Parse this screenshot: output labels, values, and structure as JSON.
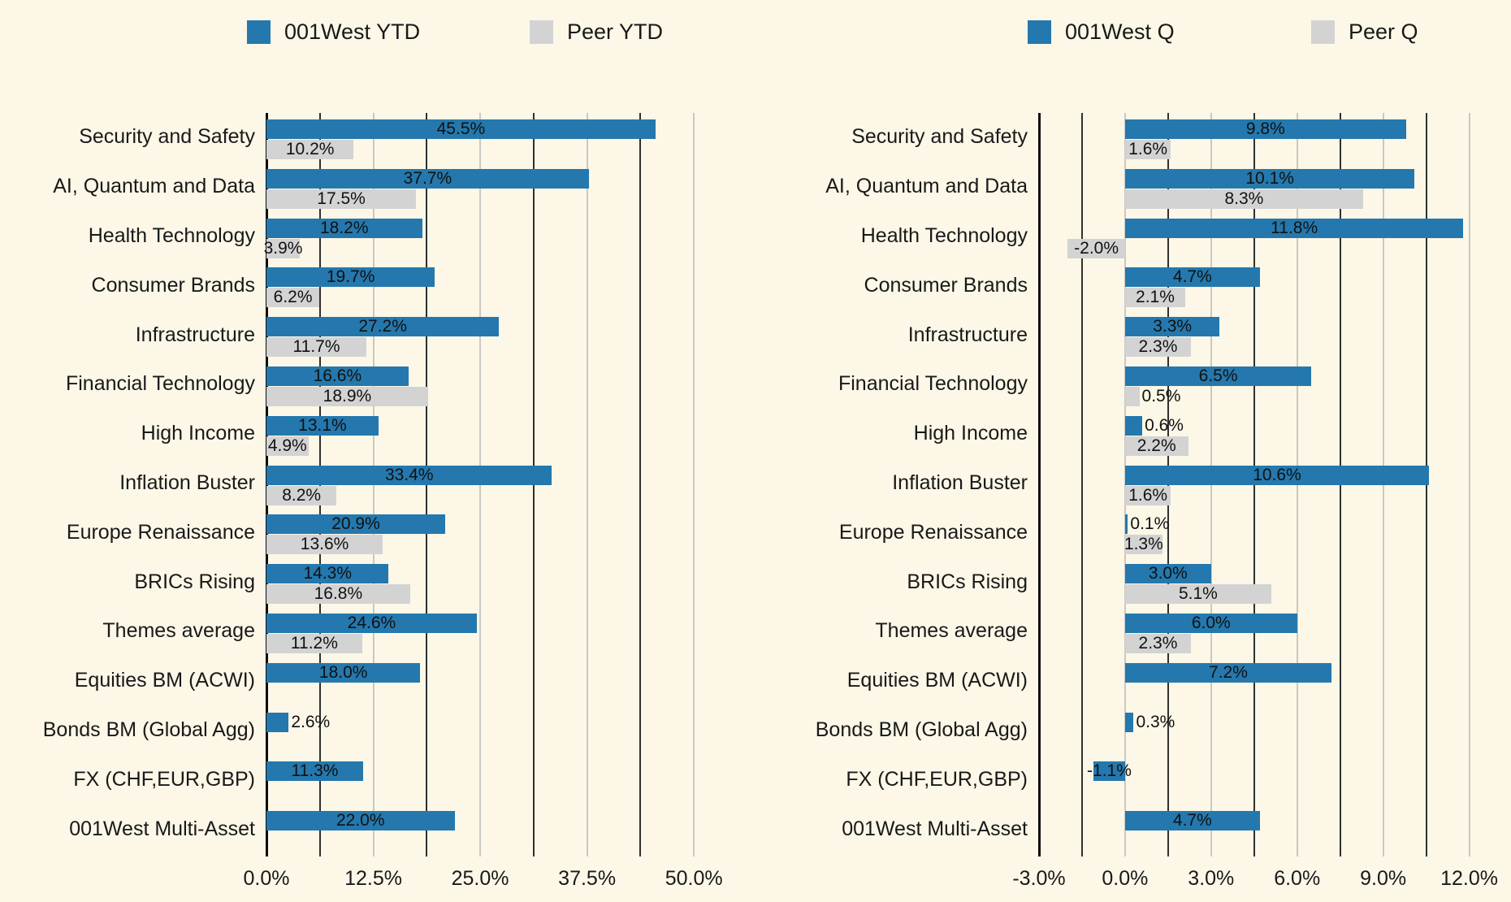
{
  "page": {
    "background_color": "#fcf7e7",
    "text_color": "#191919"
  },
  "colors": {
    "blue": "#2478ad",
    "gray": "#d3d3d3",
    "grid_dark": "#303030",
    "grid_light": "#c9c9c3",
    "spine": "#0d0d0d"
  },
  "legends": [
    {
      "label": "001West YTD",
      "color_key": "blue"
    },
    {
      "label": "Peer YTD",
      "color_key": "gray"
    },
    {
      "label": "001West Q",
      "color_key": "blue"
    },
    {
      "label": "Peer Q",
      "color_key": "gray"
    }
  ],
  "chart_data": [
    {
      "type": "bar",
      "orientation": "horizontal",
      "title": "",
      "categories": [
        "Security and Safety",
        "AI, Quantum and Data",
        "Health Technology",
        "Consumer Brands",
        "Infrastructure",
        "Financial Technology",
        "High Income",
        "Inflation Buster",
        "Europe Renaissance",
        "BRICs Rising",
        "Themes average",
        "Equities BM (ACWI)",
        "Bonds BM (Global Agg)",
        "FX (CHF,EUR,GBP)",
        "001West Multi-Asset"
      ],
      "series": [
        {
          "name": "001West YTD",
          "color_key": "blue",
          "values": [
            45.5,
            37.7,
            18.2,
            19.7,
            27.2,
            16.6,
            13.1,
            33.4,
            20.9,
            14.3,
            24.6,
            18.0,
            2.6,
            11.3,
            22.0
          ]
        },
        {
          "name": "Peer YTD",
          "color_key": "gray",
          "values": [
            10.2,
            17.5,
            3.9,
            6.2,
            11.7,
            18.9,
            4.9,
            8.2,
            13.6,
            16.8,
            11.2,
            null,
            null,
            null,
            null
          ]
        }
      ],
      "xlim": [
        0,
        53.5
      ],
      "grid_step": 6.25,
      "tick_values": [
        0,
        12.5,
        25,
        37.5,
        50
      ],
      "tick_labels": [
        "0.0%",
        "12.5%",
        "25.0%",
        "37.5%",
        "50.0%"
      ],
      "value_suffix": "%",
      "grid": true,
      "legend_position": "top"
    },
    {
      "type": "bar",
      "orientation": "horizontal",
      "title": "",
      "categories": [
        "Security and Safety",
        "AI, Quantum and Data",
        "Health Technology",
        "Consumer Brands",
        "Infrastructure",
        "Financial Technology",
        "High Income",
        "Inflation Buster",
        "Europe Renaissance",
        "BRICs Rising",
        "Themes average",
        "Equities BM (ACWI)",
        "Bonds BM (Global Agg)",
        "FX (CHF,EUR,GBP)",
        "001West Multi-Asset"
      ],
      "series": [
        {
          "name": "001West Q",
          "color_key": "blue",
          "values": [
            9.8,
            10.1,
            11.8,
            4.7,
            3.3,
            6.5,
            0.6,
            10.6,
            0.1,
            3.0,
            6.0,
            7.2,
            0.3,
            -1.1,
            4.7
          ]
        },
        {
          "name": "Peer Q",
          "color_key": "gray",
          "values": [
            1.6,
            8.3,
            -2.0,
            2.1,
            2.3,
            0.5,
            2.2,
            1.6,
            1.3,
            5.1,
            2.3,
            null,
            null,
            null,
            null
          ]
        }
      ],
      "xlim": [
        -3,
        12.75
      ],
      "grid_step": 1.5,
      "tick_values": [
        -3,
        0,
        3,
        6,
        9,
        12
      ],
      "tick_labels": [
        "-3.0%",
        "0.0%",
        "3.0%",
        "6.0%",
        "9.0%",
        "12.0%"
      ],
      "value_suffix": "%",
      "grid": true,
      "legend_position": "top"
    }
  ]
}
